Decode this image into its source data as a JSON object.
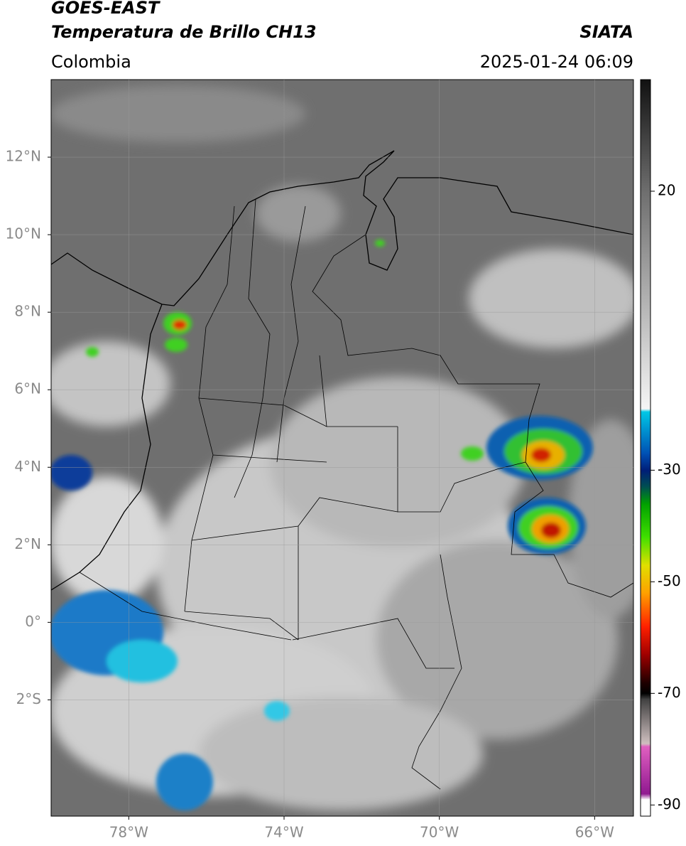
{
  "header": {
    "title": "GOES-EAST",
    "subtitle": "Temperatura de Brillo CH13",
    "source": "SIATA",
    "region": "Colombia",
    "datetime": "2025-01-24 06:09"
  },
  "map": {
    "xlim": [
      -80,
      -65
    ],
    "ylim": [
      -5,
      14
    ],
    "grid": true,
    "xticks": [
      {
        "value": -78,
        "label": "78°W"
      },
      {
        "value": -74,
        "label": "74°W"
      },
      {
        "value": -70,
        "label": "70°W"
      },
      {
        "value": -66,
        "label": "66°W"
      }
    ],
    "yticks": [
      {
        "value": 12,
        "label": "12°N"
      },
      {
        "value": 10,
        "label": "10°N"
      },
      {
        "value": 8,
        "label": "8°N"
      },
      {
        "value": 6,
        "label": "6°N"
      },
      {
        "value": 4,
        "label": "4°N"
      },
      {
        "value": 2,
        "label": "2°N"
      },
      {
        "value": 0,
        "label": "0°"
      },
      {
        "value": -2,
        "label": "2°S"
      }
    ]
  },
  "colorbar": {
    "lim": [
      -92,
      40
    ],
    "ticks": [
      20,
      -30,
      -50,
      -70,
      -90
    ],
    "colormap": [
      {
        "value": 40,
        "color": "#111111"
      },
      {
        "value": 20,
        "color": "#6e6e6e"
      },
      {
        "value": -19,
        "color": "#f5f5f5"
      },
      {
        "value": -19.5,
        "color": "#00c8e6"
      },
      {
        "value": -27,
        "color": "#0050b4"
      },
      {
        "value": -30,
        "color": "#001e78"
      },
      {
        "value": -33,
        "color": "#005050"
      },
      {
        "value": -36,
        "color": "#00a000"
      },
      {
        "value": -42,
        "color": "#40e000"
      },
      {
        "value": -47,
        "color": "#e0e000"
      },
      {
        "value": -52,
        "color": "#ffa000"
      },
      {
        "value": -58,
        "color": "#ff2000"
      },
      {
        "value": -63,
        "color": "#a00000"
      },
      {
        "value": -68,
        "color": "#200000"
      },
      {
        "value": -70,
        "color": "#000000"
      },
      {
        "value": -71,
        "color": "#404040"
      },
      {
        "value": -79,
        "color": "#d0c0c0"
      },
      {
        "value": -79.5,
        "color": "#e060c0"
      },
      {
        "value": -88,
        "color": "#901890"
      },
      {
        "value": -89,
        "color": "#ffffff"
      },
      {
        "value": -92,
        "color": "#ffffff"
      }
    ]
  }
}
